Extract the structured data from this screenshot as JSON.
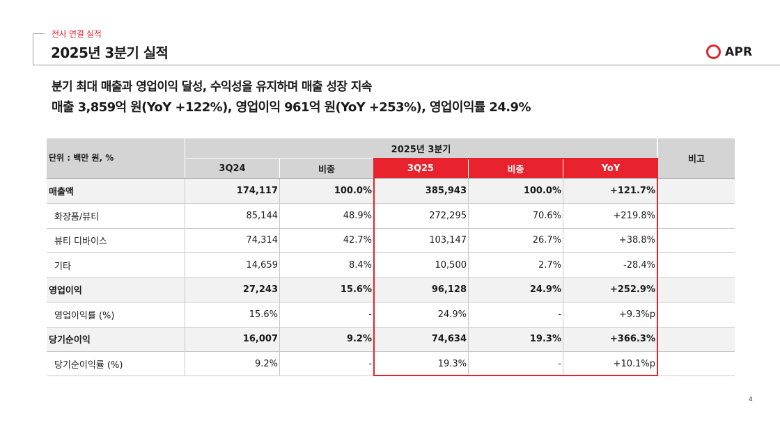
{
  "header": {
    "category": "전사 연결 실적",
    "title": "2025년 3분기 실적"
  },
  "logo": {
    "text": "APR",
    "accent": "#e3222b"
  },
  "headlines": [
    "분기 최대 매출과 영업이익 달성, 수익성을 유지하며 매출 성장 지속",
    "매출 3,859억 원(YoY +122%), 영업이익 961억 원(YoY +253%), 영업이익률 24.9%"
  ],
  "table": {
    "unit_label": "단위 : 백만 원, %",
    "group_header": "2025년 3분기",
    "note_header": "비고",
    "columns": [
      "3Q24",
      "비중",
      "3Q25",
      "비중",
      "YoY"
    ],
    "rows": [
      {
        "label": "매출액",
        "values": [
          "174,117",
          "100.0%",
          "385,943",
          "100.0%",
          "+121.7%"
        ],
        "note": ""
      },
      {
        "label": "화장품/뷰티",
        "values": [
          "85,144",
          "48.9%",
          "272,295",
          "70.6%",
          "+219.8%"
        ],
        "note": ""
      },
      {
        "label": "뷰티 디바이스",
        "values": [
          "74,314",
          "42.7%",
          "103,147",
          "26.7%",
          "+38.8%"
        ],
        "note": ""
      },
      {
        "label": "기타",
        "values": [
          "14,659",
          "8.4%",
          "10,500",
          "2.7%",
          "-28.4%"
        ],
        "note": ""
      },
      {
        "label": "영업이익",
        "values": [
          "27,243",
          "15.6%",
          "96,128",
          "24.9%",
          "+252.9%"
        ],
        "note": ""
      },
      {
        "label": "영업이익률 (%)",
        "values": [
          "15.6%",
          "-",
          "24.9%",
          "-",
          "+9.3%p"
        ],
        "note": ""
      },
      {
        "label": "당기순이익",
        "values": [
          "16,007",
          "9.2%",
          "74,634",
          "19.3%",
          "+366.3%"
        ],
        "note": ""
      },
      {
        "label": "당기순이익률 (%)",
        "values": [
          "9.2%",
          "-",
          "19.3%",
          "-",
          "+10.1%p"
        ],
        "note": ""
      }
    ]
  },
  "page_number": "4"
}
